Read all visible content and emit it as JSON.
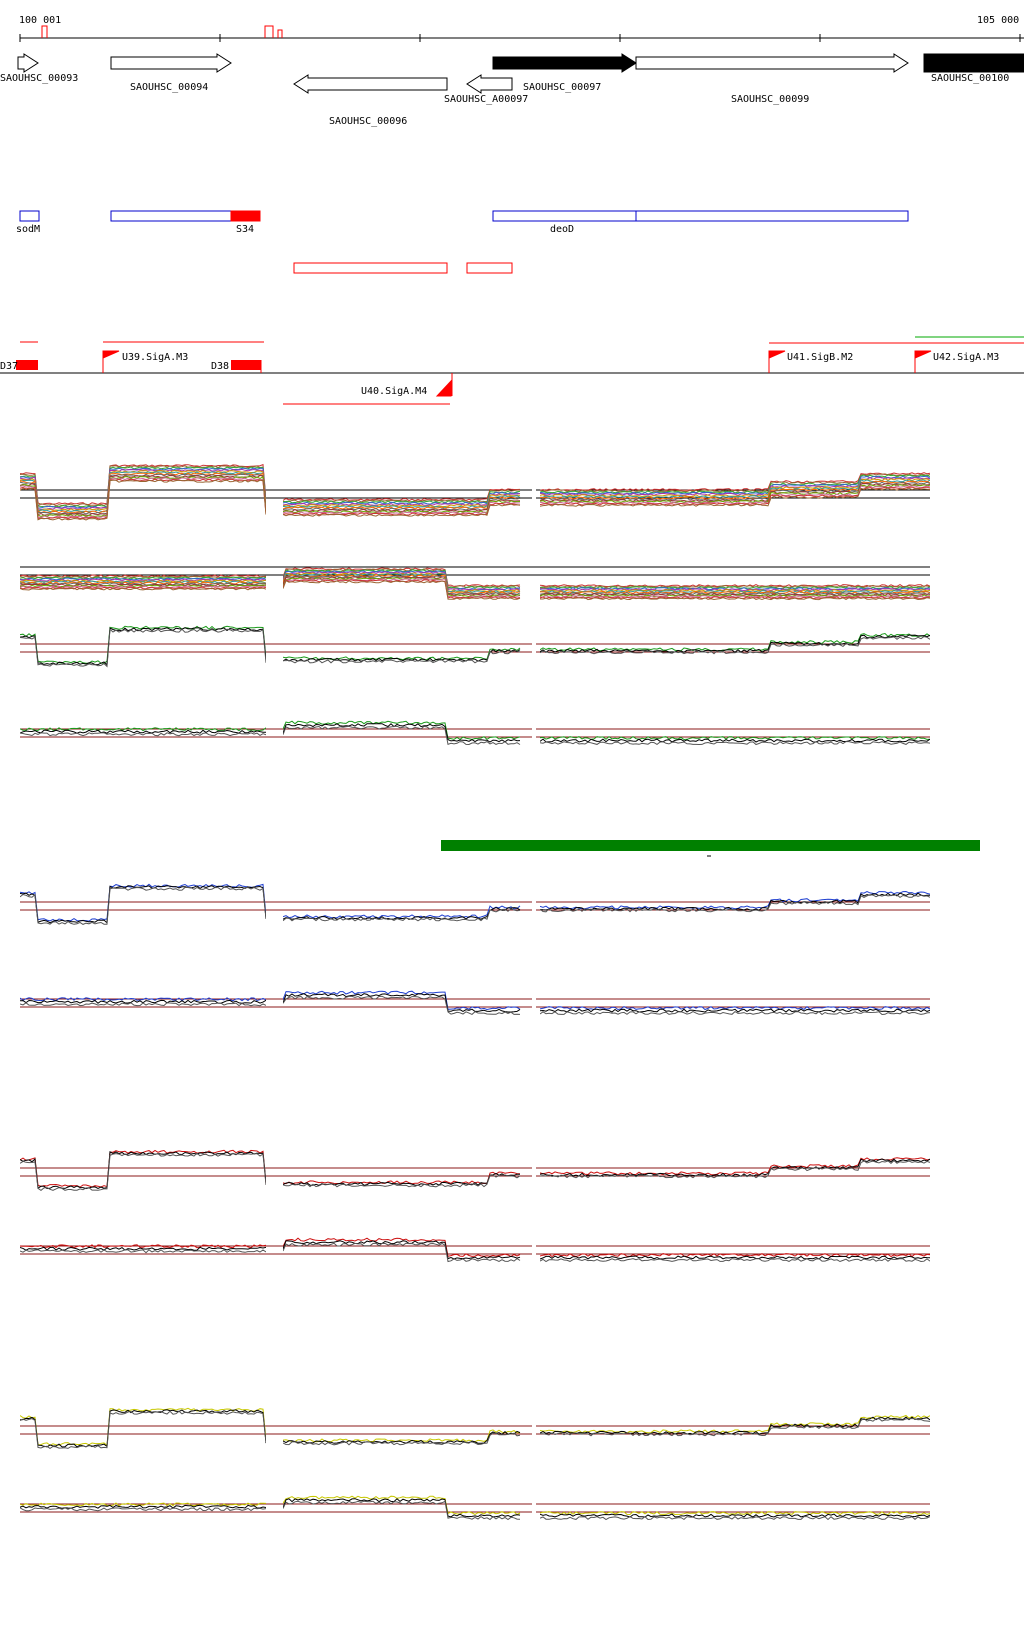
{
  "ruler": {
    "start_label": "100 001",
    "end_label": "105 000",
    "start": 100001,
    "end": 105000
  },
  "colors": {
    "gene_open": "#ffffff",
    "gene_filled": "#000000",
    "feature_blue": "#0000cc",
    "feature_red": "#ff0000",
    "promoter_red": "#ff0000",
    "ref_line": "#8b1a1a",
    "green_bar": "#008000",
    "green_trace": "#1a9a1a",
    "blue_trace": "#1f3fd0",
    "red_trace": "#cc1010",
    "yellow_trace": "#c8c800",
    "black_trace": "#000000"
  },
  "genes": [
    {
      "label": "SAOUHSC_00093",
      "start": 100001,
      "end": 100100,
      "strand": "+",
      "filled": false
    },
    {
      "label": "SAOUHSC_00094",
      "start": 100460,
      "end": 101080,
      "strand": "+",
      "filled": false
    },
    {
      "label": "SAOUHSC_00096",
      "start": 101380,
      "end": 102130,
      "strand": "-",
      "filled": false
    },
    {
      "label": "SAOUHSC_A00097",
      "start": 102230,
      "end": 102460,
      "strand": "-",
      "filled": false
    },
    {
      "label": "SAOUHSC_00097",
      "start": 102460,
      "end": 103180,
      "strand": "+",
      "filled": true
    },
    {
      "label": "SAOUHSC_00099",
      "start": 103180,
      "end": 104540,
      "strand": "+",
      "filled": false
    },
    {
      "label": "SAOUHSC_00100",
      "start": 104620,
      "end": 105000,
      "strand": "+",
      "filled": true
    }
  ],
  "features": [
    {
      "label": "sodM",
      "start": 100001,
      "end": 100100,
      "color": "blue",
      "label_pos": "below"
    },
    {
      "label": "S34",
      "start": 100460,
      "end": 101220,
      "color": "blue",
      "label_pos": "below"
    },
    {
      "label": "deoD",
      "start": 102460,
      "end": 104540,
      "color": "blue",
      "label_pos": "below"
    }
  ],
  "promoters_top": [
    {
      "label": "U39.SigA.M3"
    },
    {
      "label": "U41.SigB.M2"
    },
    {
      "label": "U42.SigA.M3"
    }
  ],
  "promoters_bottom": [
    {
      "label": "U40.SigA.M4"
    }
  ],
  "edge_labels": {
    "left_fragment": "D37",
    "overlap_fragment": "D38"
  },
  "green_annotation": {
    "start": 102130,
    "end": 104930
  }
}
